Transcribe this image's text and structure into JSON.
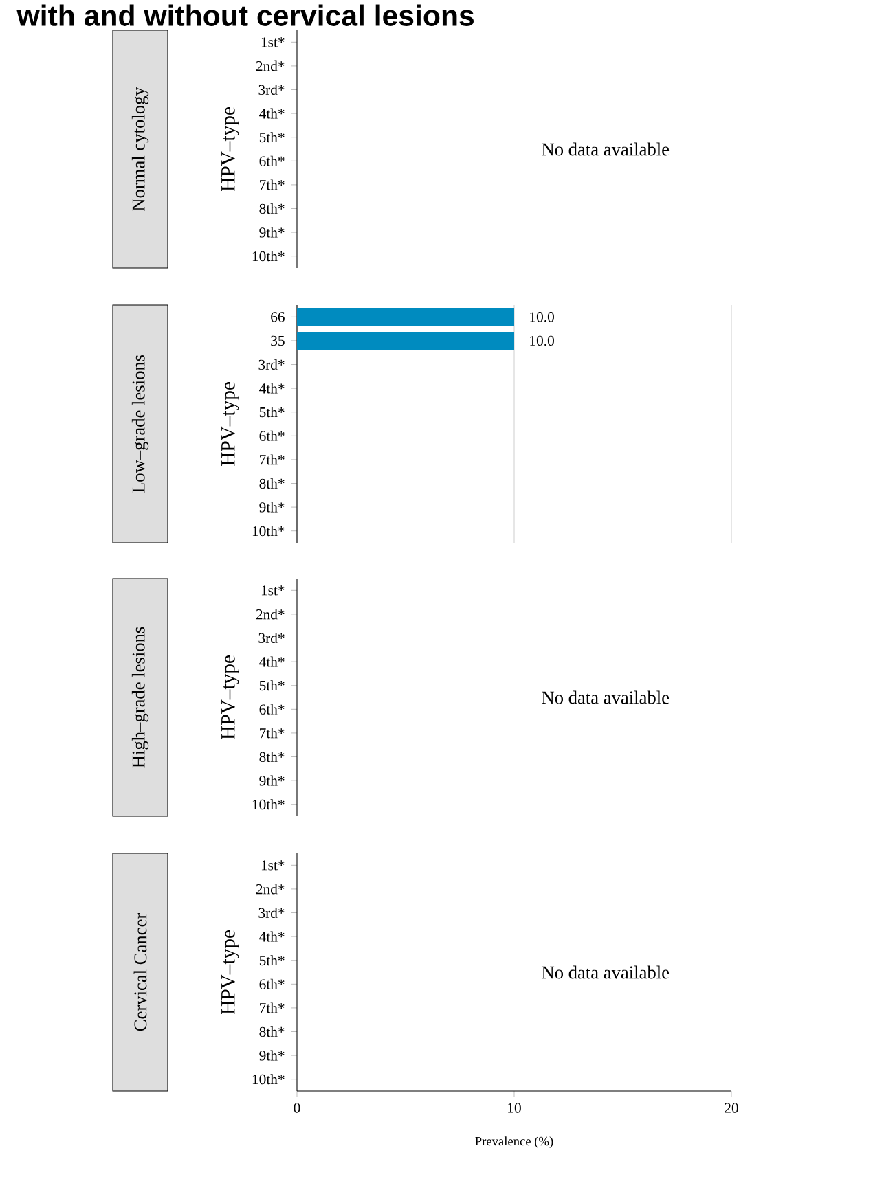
{
  "chart_data": [
    {
      "type": "bar",
      "orientation": "horizontal",
      "subtitle": "with and without cervical lesions",
      "title": "Normal cytology",
      "ylabel": "HPV–type",
      "categories": [
        "1st*",
        "2nd*",
        "3rd*",
        "4th*",
        "5th*",
        "6th*",
        "7th*",
        "8th*",
        "9th*",
        "10th*"
      ],
      "values": [
        null,
        null,
        null,
        null,
        null,
        null,
        null,
        null,
        null,
        null
      ],
      "xlim": [
        0,
        20
      ],
      "tick_labels": "y",
      "annotations": [
        "No data available"
      ]
    },
    {
      "type": "bar",
      "orientation": "horizontal",
      "title": "Low–grade lesions",
      "ylabel": "HPV–type",
      "categories": [
        "66",
        "35",
        "3rd*",
        "4th*",
        "5th*",
        "6th*",
        "7th*",
        "8th*",
        "9th*",
        "10th*"
      ],
      "values": [
        10,
        10,
        null,
        null,
        null,
        null,
        null,
        null,
        null,
        null
      ],
      "color": "#008bbf",
      "value_labels": [
        "10.0",
        "10.0",
        null,
        null,
        null,
        null,
        null,
        null,
        null,
        null
      ],
      "xlim": [
        0,
        20
      ],
      "xticks": [
        0,
        10,
        20
      ],
      "grid": "x",
      "tick_labels": "y"
    },
    {
      "type": "bar",
      "orientation": "horizontal",
      "title": "High–grade lesions",
      "ylabel": "HPV–type",
      "categories": [
        "1st*",
        "2nd*",
        "3rd*",
        "4th*",
        "5th*",
        "6th*",
        "7th*",
        "8th*",
        "9th*",
        "10th*"
      ],
      "values": [
        null,
        null,
        null,
        null,
        null,
        null,
        null,
        null,
        null,
        null
      ],
      "xlim": [
        0,
        20
      ],
      "tick_labels": "y",
      "annotations": [
        "No data available"
      ]
    },
    {
      "type": "bar",
      "orientation": "horizontal",
      "title": "Cervical Cancer",
      "ylabel": "HPV–type",
      "xlabel": "Prevalence (%)",
      "categories": [
        "1st*",
        "2nd*",
        "3rd*",
        "4th*",
        "5th*",
        "6th*",
        "7th*",
        "8th*",
        "9th*",
        "10th*"
      ],
      "values": [
        null,
        null,
        null,
        null,
        null,
        null,
        null,
        null,
        null,
        null
      ],
      "xlim": [
        0,
        20
      ],
      "xticks": [
        0,
        10,
        20
      ],
      "annotations": [
        "No data available"
      ]
    }
  ]
}
